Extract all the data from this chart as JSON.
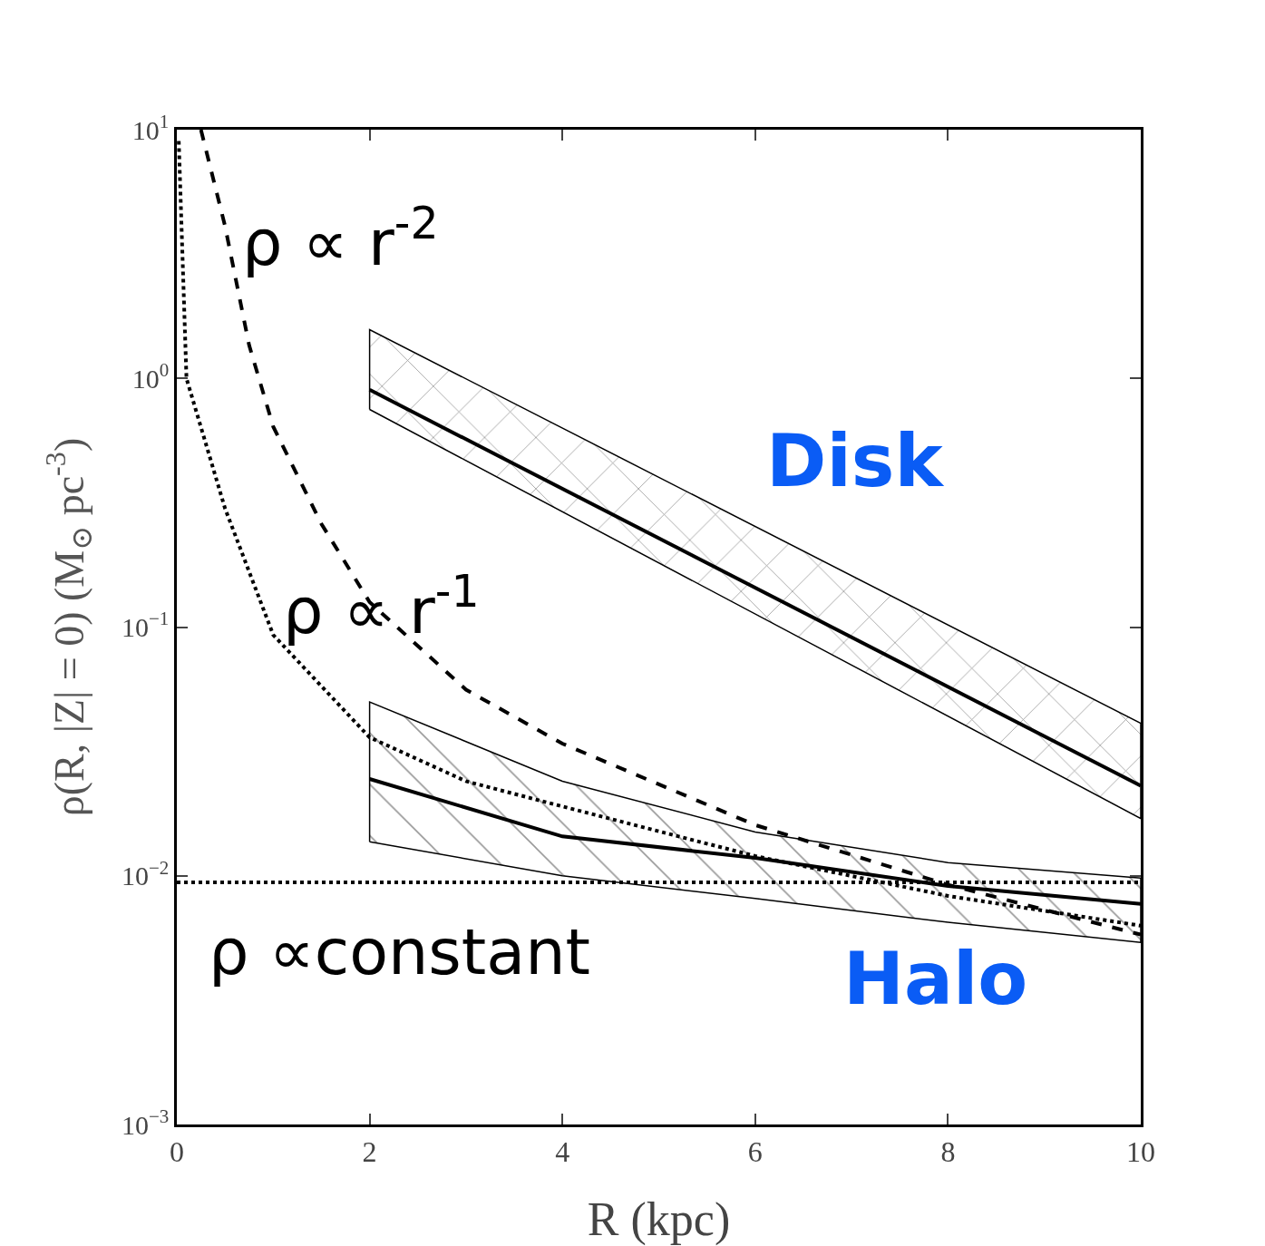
{
  "chart_data": {
    "type": "line",
    "xlabel": "R (kpc)",
    "ylabel": "ρ(R, |Z| = 0) (M$_{⊙}$ pc$^{-3}$)",
    "log": "y",
    "xlim": [
      0,
      10
    ],
    "ylim": [
      0.001,
      10
    ],
    "xticks": [
      0,
      2,
      4,
      6,
      8,
      10
    ],
    "yticks": [
      {
        "value": 0.001,
        "label": "10$^{−3}$"
      },
      {
        "value": 0.01,
        "label": "10$^{−2}$"
      },
      {
        "value": 0.1,
        "label": "10$^{−1}$"
      },
      {
        "value": 1,
        "label": "10$^{0}$"
      },
      {
        "value": 10,
        "label": "10$^{1}$"
      }
    ],
    "grid": false,
    "marker": "none",
    "series": [
      {
        "color": "#000000",
        "line_style": "solid",
        "x": [
          2,
          10
        ],
        "values": [
          0.9,
          0.023
        ],
        "lower": [
          0.75,
          0.017
        ],
        "upper": [
          1.57,
          0.041
        ]
      },
      {
        "color": "#000000",
        "line_style": "solid",
        "x": [
          2,
          4,
          6,
          8,
          10
        ],
        "values": [
          0.0245,
          0.0144,
          0.0118,
          0.0091,
          0.0077
        ],
        "lower": [
          0.0137,
          0.01,
          0.0081,
          0.0065,
          0.0054
        ],
        "upper": [
          0.05,
          0.024,
          0.015,
          0.0113,
          0.0098
        ]
      },
      {
        "color": "#000000",
        "line_style": "dashed",
        "x": [
          0.25,
          0.5,
          0.75,
          1,
          1.5,
          2,
          3,
          4,
          6,
          8,
          10
        ],
        "values": [
          10,
          4.1,
          1.36,
          0.64,
          0.26,
          0.126,
          0.056,
          0.034,
          0.016,
          0.0092,
          0.0058
        ]
      },
      {
        "color": "#000000",
        "line_style": "dotted",
        "x": [
          0.02,
          0.1,
          0.5,
          1,
          2,
          3,
          4,
          6,
          8,
          10
        ],
        "values": [
          9,
          1,
          0.3,
          0.093,
          0.036,
          0.024,
          0.019,
          0.012,
          0.0083,
          0.0063
        ]
      },
      {
        "color": "#000000",
        "line_style": "dotted",
        "x": [
          0,
          10
        ],
        "values": [
          0.0094,
          0.0094
        ]
      }
    ],
    "annotations": [
      "ρ ∝ r$^{-2}$",
      "ρ ∝ r$^{-1}$",
      "ρ ∝constant",
      "Disk",
      "Halo"
    ]
  }
}
